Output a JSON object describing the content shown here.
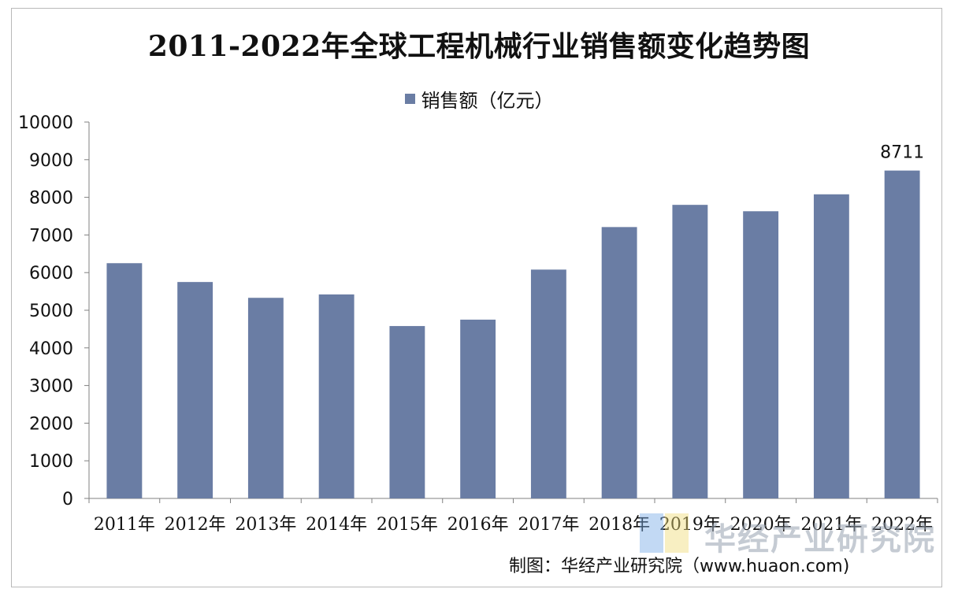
{
  "chart_data": {
    "type": "bar",
    "title": "2011-2022年全球工程机械行业销售额变化趋势图",
    "legend_position": "top-center",
    "grid": false,
    "categories": [
      "2011年",
      "2012年",
      "2013年",
      "2014年",
      "2015年",
      "2016年",
      "2017年",
      "2018年",
      "2019年",
      "2020年",
      "2021年",
      "2022年"
    ],
    "series": [
      {
        "name": "销售额（亿元）",
        "values": [
          6250,
          5750,
          5330,
          5420,
          4580,
          4750,
          6080,
          7210,
          7800,
          7630,
          8080,
          8711
        ]
      }
    ],
    "data_labels": [
      {
        "category": "2022年",
        "text": "8711"
      }
    ],
    "ylim": [
      0,
      10000
    ],
    "yticks": [
      0,
      1000,
      2000,
      3000,
      4000,
      5000,
      6000,
      7000,
      8000,
      9000,
      10000
    ],
    "bar_color": "#6a7da4"
  },
  "source_text": "制图：华经产业研究院（www.huaon.com)",
  "watermark_text": "华经产业研究院"
}
